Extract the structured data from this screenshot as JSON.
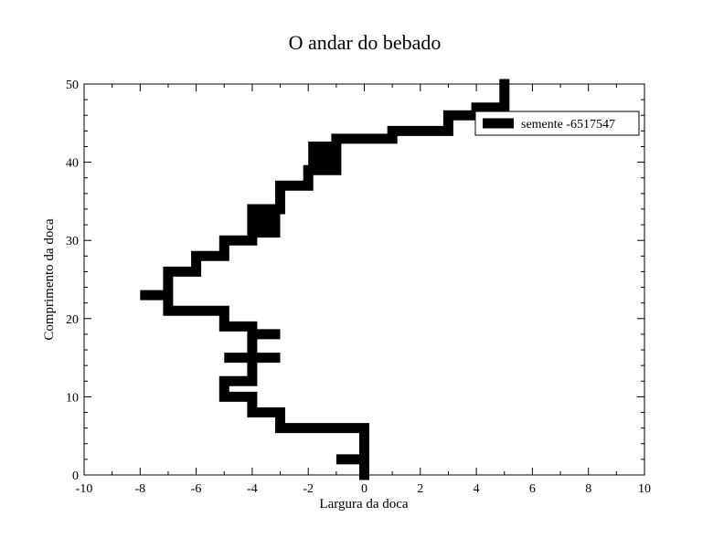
{
  "chart_data": {
    "type": "line",
    "title": "O andar do bebado",
    "xlabel": "Largura da doca",
    "ylabel": "Comprimento da doca",
    "xlim": [
      -10,
      10
    ],
    "ylim": [
      0,
      50
    ],
    "x_ticks": [
      "-10",
      "-8",
      "-6",
      "-4",
      "-2",
      "0",
      "2",
      "4",
      "6",
      "8",
      "10"
    ],
    "y_ticks": [
      "0",
      "10",
      "20",
      "30",
      "40",
      "50"
    ],
    "grid": false,
    "legend_position": "top-right",
    "series": [
      {
        "name": "semente -6517547",
        "color": "#000000",
        "step": "horizontal-then-vertical",
        "points": [
          [
            0,
            0
          ],
          [
            0,
            2
          ],
          [
            -1,
            2
          ],
          [
            0,
            2
          ],
          [
            0,
            6
          ],
          [
            -3,
            6
          ],
          [
            -3,
            8
          ],
          [
            -4,
            8
          ],
          [
            -4,
            10
          ],
          [
            -5,
            10
          ],
          [
            -5,
            12
          ],
          [
            -4,
            12
          ],
          [
            -4,
            15
          ],
          [
            -5,
            15
          ],
          [
            -3,
            15
          ],
          [
            -4,
            15
          ],
          [
            -4,
            18
          ],
          [
            -3,
            18
          ],
          [
            -4,
            18
          ],
          [
            -4,
            19
          ],
          [
            -5,
            19
          ],
          [
            -5,
            21
          ],
          [
            -7,
            21
          ],
          [
            -7,
            23
          ],
          [
            -8,
            23
          ],
          [
            -7,
            23
          ],
          [
            -7,
            26
          ],
          [
            -6,
            26
          ],
          [
            -6,
            28
          ],
          [
            -5,
            28
          ],
          [
            -5,
            30
          ],
          [
            -4,
            30
          ],
          [
            -4,
            31
          ],
          [
            -3,
            31
          ],
          [
            -4,
            31
          ],
          [
            -4,
            32
          ],
          [
            -3,
            32
          ],
          [
            -4,
            32
          ],
          [
            -4,
            33
          ],
          [
            -3,
            33
          ],
          [
            -4,
            33
          ],
          [
            -4,
            34
          ],
          [
            -3,
            34
          ],
          [
            -3,
            37
          ],
          [
            -2,
            37
          ],
          [
            -2,
            39
          ],
          [
            -1,
            39
          ],
          [
            -1,
            40
          ],
          [
            -2,
            40
          ],
          [
            -1,
            40
          ],
          [
            -1,
            41
          ],
          [
            -2,
            41
          ],
          [
            -1,
            41
          ],
          [
            -1,
            42
          ],
          [
            -2,
            42
          ],
          [
            -1,
            42
          ],
          [
            -1,
            43
          ],
          [
            1,
            43
          ],
          [
            1,
            44
          ],
          [
            3,
            44
          ],
          [
            3,
            46
          ],
          [
            4,
            46
          ],
          [
            4,
            47
          ],
          [
            5,
            47
          ],
          [
            5,
            50
          ]
        ]
      }
    ]
  }
}
